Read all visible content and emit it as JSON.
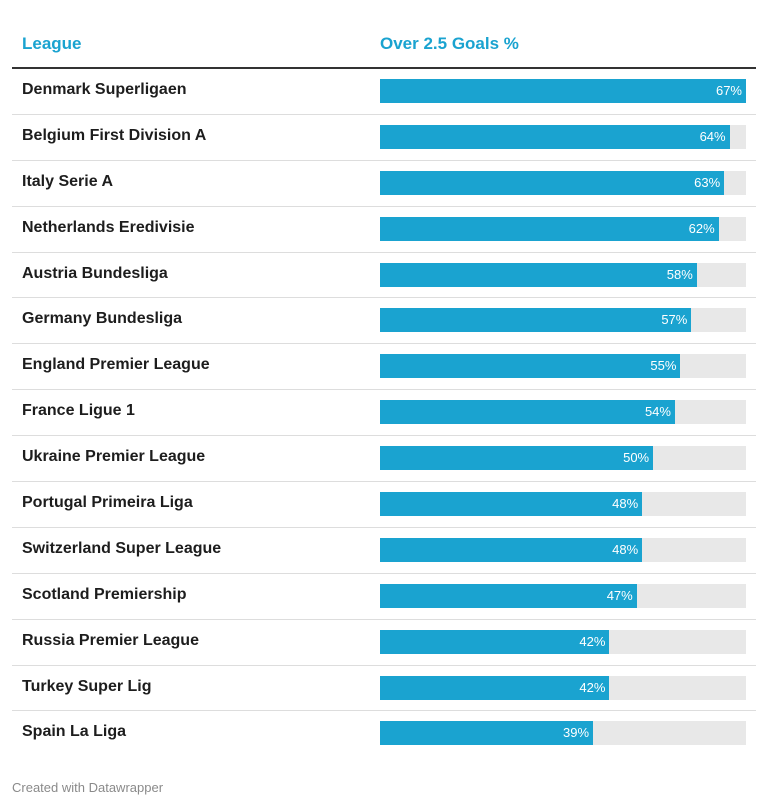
{
  "header": {
    "league_label": "League",
    "value_label": "Over 2.5 Goals %"
  },
  "footer": {
    "credit": "Created with Datawrapper"
  },
  "colors": {
    "accent": "#1aa3d0",
    "track": "#e8e8e8",
    "text": "#1d1d1d"
  },
  "chart_data": {
    "type": "bar",
    "orientation": "horizontal",
    "xlim": [
      0,
      67
    ],
    "categories": [
      "Denmark Superligaen",
      "Belgium First Division A",
      "Italy Serie A",
      "Netherlands Eredivisie",
      "Austria Bundesliga",
      "Germany Bundesliga",
      "England Premier League",
      "France Ligue 1",
      "Ukraine Premier League",
      "Portugal Primeira Liga",
      "Switzerland Super League",
      "Scotland Premiership",
      "Russia Premier League",
      "Turkey Super Lig",
      "Spain La Liga"
    ],
    "values": [
      67,
      64,
      63,
      62,
      58,
      57,
      55,
      54,
      50,
      48,
      48,
      47,
      42,
      42,
      39
    ],
    "labels": [
      "67%",
      "64%",
      "63%",
      "62%",
      "58%",
      "57%",
      "55%",
      "54%",
      "50%",
      "48%",
      "48%",
      "47%",
      "42%",
      "42%",
      "39%"
    ]
  }
}
